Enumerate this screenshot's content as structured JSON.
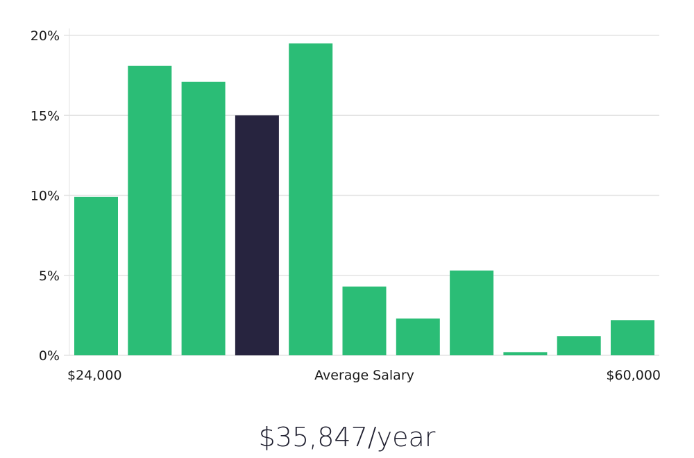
{
  "chart_data": {
    "type": "bar",
    "values": [
      9.9,
      18.1,
      17.1,
      15.0,
      19.5,
      4.3,
      2.3,
      5.3,
      0.2,
      1.2,
      2.2
    ],
    "highlight_index": 3,
    "ylim": [
      0,
      20
    ],
    "y_ticks": [
      0,
      5,
      10,
      15,
      20
    ],
    "y_tick_labels": [
      "0%",
      "5%",
      "10%",
      "15%",
      "20%"
    ],
    "x_min_label": "$24,000",
    "x_center_label": "Average Salary",
    "x_max_label": "$60,000",
    "grid": true,
    "bar_color": "#2bbd76",
    "highlight_color": "#27243f",
    "grid_color": "#e3e3e3"
  },
  "salary_text": "$35,847/year"
}
